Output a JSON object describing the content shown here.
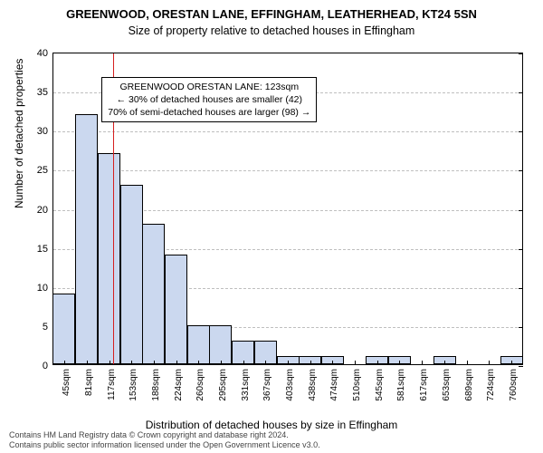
{
  "title": "GREENWOOD, ORESTAN LANE, EFFINGHAM, LEATHERHEAD, KT24 5SN",
  "subtitle": "Size of property relative to detached houses in Effingham",
  "ylabel": "Number of detached properties",
  "xlabel": "Distribution of detached houses by size in Effingham",
  "credits_line1": "Contains HM Land Registry data © Crown copyright and database right 2024.",
  "credits_line2": "Contains public sector information licensed under the Open Government Licence v3.0.",
  "annotation": {
    "line1": "GREENWOOD ORESTAN LANE: 123sqm",
    "line2": "← 30% of detached houses are smaller (42)",
    "line3": "70% of semi-detached houses are larger (98) →",
    "x": 105,
    "y_top_val": 37
  },
  "marker_x_value": 123,
  "chart": {
    "type": "histogram",
    "x_min": 28,
    "x_max": 780,
    "ylim": [
      0,
      40
    ],
    "ytick_step": 5,
    "xtick_start": 45,
    "xtick_step": 36,
    "xtick_suffix": "sqm",
    "bar_fill": "#cbd8ef",
    "bar_stroke": "#000000",
    "grid_color": "#bfbfbf",
    "background": "#ffffff",
    "vline_color": "#d62020",
    "title_fontsize": 13,
    "subtitle_fontsize": 12.5,
    "label_fontsize": 12,
    "tick_fontsize": 11,
    "xtick_fontsize": 10,
    "annotation_fontsize": 10.5,
    "bin_width_value": 36,
    "bins": [
      {
        "x": 45,
        "count": 9
      },
      {
        "x": 81,
        "count": 32
      },
      {
        "x": 117,
        "count": 27
      },
      {
        "x": 153,
        "count": 23
      },
      {
        "x": 188,
        "count": 18
      },
      {
        "x": 224,
        "count": 14
      },
      {
        "x": 260,
        "count": 5
      },
      {
        "x": 295,
        "count": 5
      },
      {
        "x": 331,
        "count": 3
      },
      {
        "x": 367,
        "count": 3
      },
      {
        "x": 403,
        "count": 1
      },
      {
        "x": 438,
        "count": 1
      },
      {
        "x": 474,
        "count": 1
      },
      {
        "x": 510,
        "count": 0
      },
      {
        "x": 545,
        "count": 1
      },
      {
        "x": 581,
        "count": 1
      },
      {
        "x": 617,
        "count": 0
      },
      {
        "x": 653,
        "count": 1
      },
      {
        "x": 689,
        "count": 0
      },
      {
        "x": 724,
        "count": 0
      },
      {
        "x": 760,
        "count": 1
      }
    ]
  }
}
